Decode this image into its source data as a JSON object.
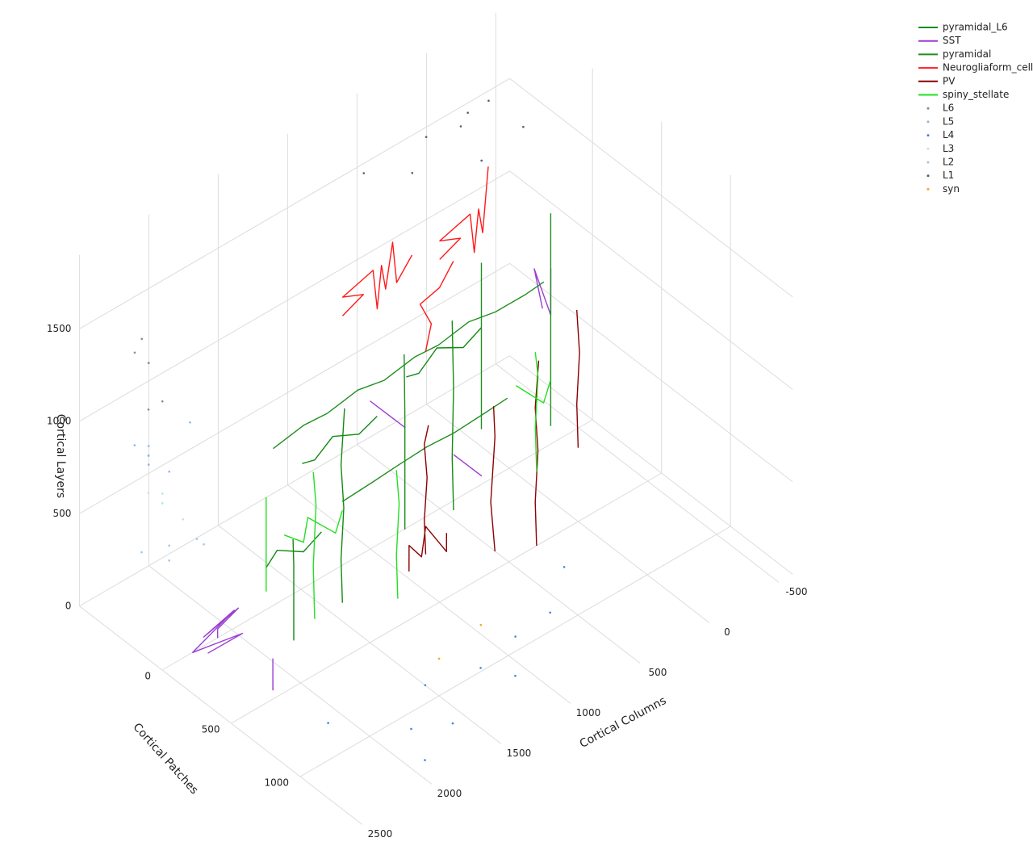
{
  "chart_data": {
    "type": "scatter3d",
    "xaxis_title": "Cortical Columns",
    "yaxis_title": "Cortical Patches",
    "zaxis_title": "Cortical Layers",
    "xlim": [
      -600,
      2500
    ],
    "ylim": [
      -600,
      1450
    ],
    "zlim": [
      0,
      1900
    ],
    "xticks": [
      -500,
      0,
      500,
      1000,
      1500,
      2000,
      2500
    ],
    "yticks": [
      0,
      500,
      1000
    ],
    "zticks": [
      0,
      500,
      1000,
      1500
    ],
    "grid": true,
    "legend_position": "top-right",
    "series": [
      {
        "name": "pyramidal_L6",
        "mode": "lines",
        "color": "#128a12",
        "x": [
          1500,
          1520,
          1480,
          1510,
          1490,
          null,
          1250,
          1400,
          1550,
          1700,
          1800,
          null,
          600,
          620,
          590,
          610,
          null,
          400,
          550,
          700,
          850,
          950,
          null,
          1950,
          1960,
          1940,
          1955,
          null,
          1750,
          1900,
          2050,
          2150
        ],
        "y": [
          300,
          310,
          290,
          300,
          305,
          null,
          300,
          320,
          280,
          300,
          310,
          null,
          200,
          210,
          190,
          200,
          null,
          200,
          220,
          180,
          200,
          210,
          null,
          400,
          410,
          390,
          400,
          null,
          400,
          420,
          380,
          400
        ],
        "z": [
          100,
          350,
          600,
          850,
          1150,
          null,
          1000,
          980,
          1010,
          960,
          990,
          null,
          150,
          450,
          800,
          1180,
          null,
          1050,
          1020,
          1060,
          1000,
          1030,
          null,
          150,
          350,
          550,
          700,
          null,
          650,
          620,
          670,
          630
        ]
      },
      {
        "name": "SST",
        "mode": "lines",
        "color": "#9b3fd0",
        "x": [
          2250,
          2350,
          2300,
          2400,
          2280,
          2380,
          2320,
          2420,
          null,
          2100,
          2200,
          2150,
          2250,
          2180,
          null,
          -250,
          -150,
          -200,
          -100,
          -180,
          -120,
          null,
          900,
          1000,
          950,
          1050,
          980,
          null,
          400,
          500,
          450,
          550
        ],
        "y": [
          150,
          250,
          350,
          200,
          300,
          100,
          400,
          250,
          null,
          400,
          500,
          450,
          550,
          480,
          null,
          50,
          150,
          100,
          200,
          0,
          120,
          null,
          0,
          100,
          200,
          50,
          150,
          null,
          200,
          300,
          250,
          150
        ],
        "z": [
          150,
          300,
          450,
          250,
          400,
          100,
          350,
          200,
          null,
          50,
          150,
          0,
          100,
          200,
          null,
          850,
          950,
          1050,
          900,
          1000,
          880,
          null,
          700,
          800,
          750,
          850,
          780,
          null,
          250,
          350,
          300,
          400
        ]
      },
      {
        "name": "pyramidal",
        "mode": "lines",
        "color": "#1f8f1f",
        "x": [
          1800,
          1600,
          1400,
          1200,
          1000,
          800,
          600,
          400,
          200,
          0,
          -150,
          null,
          1700,
          1500,
          1300,
          1100,
          900,
          700,
          500,
          null,
          300,
          310,
          290,
          300,
          null,
          1050,
          1060,
          1040,
          1055,
          null,
          -100,
          -90,
          -110,
          -100
        ],
        "y": [
          100,
          120,
          90,
          110,
          100,
          120,
          90,
          110,
          100,
          120,
          100,
          null,
          500,
          520,
          490,
          510,
          500,
          520,
          490,
          null,
          100,
          110,
          90,
          100,
          null,
          300,
          310,
          290,
          300,
          null,
          200,
          210,
          190,
          200
        ],
        "z": [
          950,
          1000,
          960,
          1010,
          970,
          1020,
          980,
          1030,
          990,
          1010,
          1000,
          null,
          850,
          880,
          860,
          890,
          870,
          900,
          880,
          null,
          400,
          700,
          1000,
          1300,
          null,
          300,
          600,
          900,
          1250,
          null,
          300,
          700,
          1050,
          1450
        ]
      },
      {
        "name": "Neurogliaform_cell",
        "mode": "lines",
        "color": "#ff1a1a",
        "x": [
          1300,
          1200,
          1250,
          1100,
          1150,
          1000,
          1050,
          900,
          950,
          800,
          null,
          700,
          600,
          650,
          500,
          550,
          400,
          450,
          350,
          null,
          900,
          880,
          920,
          850,
          800
        ],
        "y": [
          100,
          150,
          50,
          120,
          200,
          80,
          160,
          60,
          140,
          100,
          null,
          200,
          250,
          150,
          220,
          300,
          180,
          260,
          200,
          null,
          300,
          320,
          280,
          350,
          400
        ],
        "z": [
          1450,
          1550,
          1500,
          1620,
          1480,
          1580,
          1520,
          1650,
          1500,
          1560,
          null,
          1550,
          1650,
          1600,
          1720,
          1580,
          1680,
          1620,
          1900,
          null,
          1200,
          1350,
          1450,
          1550,
          1700
        ]
      },
      {
        "name": "PV",
        "mode": "lines",
        "color": "#8b0000",
        "x": [
          900,
          920,
          880,
          910,
          890,
          null,
          750,
          800,
          850,
          950,
          1000,
          1050,
          null,
          600,
          650,
          580,
          620,
          null,
          300,
          320,
          280,
          310,
          290,
          null,
          100,
          120,
          80,
          110
        ],
        "y": [
          300,
          310,
          290,
          300,
          310,
          null,
          300,
          350,
          250,
          320,
          280,
          330,
          null,
          500,
          520,
          480,
          510,
          null,
          500,
          510,
          490,
          500,
          505,
          null,
          600,
          610,
          590,
          600
        ],
        "z": [
          100,
          300,
          500,
          700,
          800,
          null,
          150,
          100,
          200,
          120,
          180,
          90,
          null,
          100,
          400,
          700,
          900,
          null,
          0,
          250,
          500,
          750,
          1000,
          null,
          500,
          750,
          1000,
          1250
        ]
      },
      {
        "name": "spiny_stellate",
        "mode": "lines",
        "color": "#22e022",
        "x": [
          1700,
          1720,
          1680,
          1710,
          null,
          1500,
          1600,
          1700,
          1800,
          1900,
          null,
          1300,
          1320,
          1280,
          1310,
          null,
          1950,
          1960,
          1940,
          null,
          200,
          220,
          180,
          210,
          null,
          100,
          200,
          300
        ],
        "y": [
          300,
          310,
          290,
          300,
          null,
          300,
          350,
          250,
          320,
          280,
          null,
          500,
          510,
          490,
          500,
          null,
          200,
          210,
          190,
          null,
          400,
          410,
          390,
          400,
          null,
          400,
          450,
          350
        ],
        "z": [
          100,
          400,
          700,
          900,
          null,
          600,
          550,
          620,
          570,
          630,
          null,
          150,
          400,
          650,
          850,
          null,
          300,
          550,
          800,
          null,
          300,
          550,
          800,
          950,
          null,
          750,
          700,
          780
        ]
      },
      {
        "name": "L6",
        "mode": "markers",
        "color": "#7a8fa6",
        "x": [
          2200,
          2300,
          2400,
          2150,
          2350,
          2250
        ],
        "y": [
          -400,
          -300,
          -200,
          -500,
          -350,
          -250
        ],
        "z": [
          1300,
          1400,
          1250,
          1350,
          1450,
          1200
        ]
      },
      {
        "name": "L5",
        "mode": "markers",
        "color": "#87b7e8",
        "x": [
          2300,
          2400,
          2200,
          2350,
          2450,
          2250,
          2150
        ],
        "y": [
          -300,
          -200,
          -400,
          -100,
          -250,
          -350,
          -150
        ],
        "z": [
          900,
          1000,
          850,
          950,
          1050,
          800,
          1100
        ]
      },
      {
        "name": "L4",
        "mode": "markers",
        "color": "#4a7ee8",
        "x": [
          1500,
          1200,
          1800,
          2100,
          900,
          600,
          1600,
          1900,
          1100,
          300
        ],
        "y": [
          900,
          1000,
          1100,
          800,
          950,
          900,
          1200,
          1300,
          1150,
          700
        ],
        "z": [
          0,
          20,
          10,
          0,
          30,
          0,
          10,
          0,
          20,
          0
        ]
      },
      {
        "name": "L3",
        "mode": "markers",
        "color": "#b9e4f5",
        "x": [
          2300,
          2400,
          2200,
          2350,
          2450
        ],
        "y": [
          -200,
          -100,
          -300,
          0,
          -150
        ],
        "z": [
          700,
          800,
          650,
          750,
          850
        ]
      },
      {
        "name": "L2",
        "mode": "markers",
        "color": "#9fc7e8",
        "x": [
          2350,
          2250,
          2450,
          2300,
          2400
        ],
        "y": [
          -100,
          0,
          -200,
          100,
          -50
        ],
        "z": [
          550,
          600,
          500,
          650,
          520
        ]
      },
      {
        "name": "L1",
        "mode": "markers",
        "color": "#4d5f6e",
        "x": [
          500,
          300,
          100,
          -100,
          700,
          200,
          -300,
          0
        ],
        "y": [
          -200,
          -300,
          -100,
          -250,
          -350,
          -150,
          -200,
          -300
        ],
        "z": [
          1700,
          1750,
          1650,
          1800,
          1700,
          1850,
          1600,
          1750
        ]
      },
      {
        "name": "syn",
        "mode": "markers",
        "color": "#f5a623",
        "x": [
          1000,
          1400
        ],
        "y": [
          800,
          900
        ],
        "z": [
          50,
          100
        ]
      }
    ]
  }
}
